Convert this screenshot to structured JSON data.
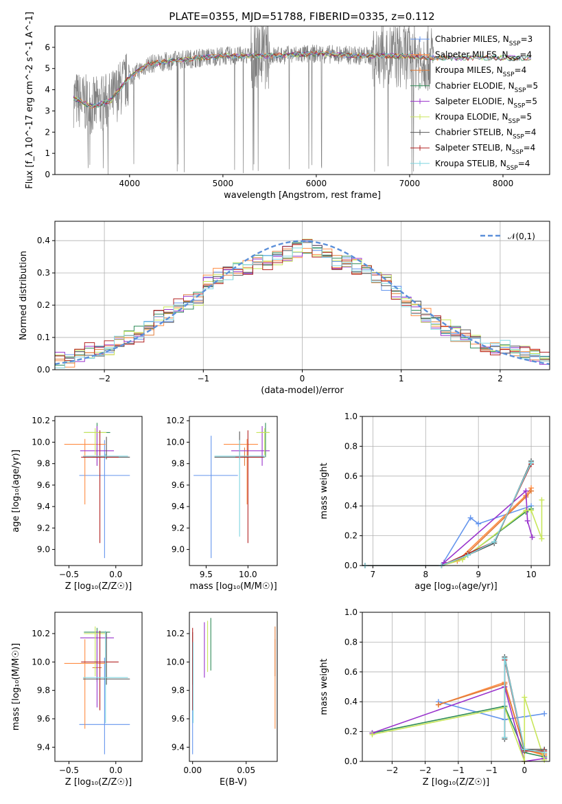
{
  "title": "PLATE=0355, MJD=51788, FIBERID=0335, z=0.112",
  "colors": {
    "chabrier_miles": "#6495ed",
    "salpeter_miles": "#ff8c42",
    "kroupa_miles": "#e07b39",
    "chabrier_elodie": "#2e8b57",
    "salpeter_elodie": "#9932cc",
    "kroupa_elodie": "#c8e65a",
    "chabrier_stelib": "#555555",
    "salpeter_stelib": "#b22222",
    "kroupa_stelib": "#7fd6e0",
    "data": "#808080",
    "gaussian": "#5b8fd9"
  },
  "chart_data": [
    {
      "type": "line",
      "title": "PLATE=0355, MJD=51788, FIBERID=0335, z=0.112",
      "xlabel": "wavelength [Angstrom, rest frame]",
      "ylabel": "Flux [f_λ 10^-17 erg cm^-2 s^-1 A^-1]",
      "xlim": [
        3200,
        8500
      ],
      "ylim": [
        0,
        7
      ],
      "xticks": [
        4000,
        5000,
        6000,
        7000,
        8000
      ],
      "yticks": [
        0,
        1,
        2,
        3,
        4,
        5,
        6
      ],
      "legend_position": "upper-right",
      "series": [
        {
          "name": "Chabrier MILES, N_SSP=3"
        },
        {
          "name": "Salpeter MILES, N_SSP=4"
        },
        {
          "name": "Kroupa MILES, N_SSP=4"
        },
        {
          "name": "Chabrier ELODIE, N_SSP=5"
        },
        {
          "name": "Salpeter ELODIE, N_SSP=5"
        },
        {
          "name": "Kroupa ELODIE, N_SSP=5"
        },
        {
          "name": "Chabrier STELIB, N_SSP=4"
        },
        {
          "name": "Salpeter STELIB, N_SSP=4"
        },
        {
          "name": "Kroupa STELIB, N_SSP=4"
        }
      ],
      "continuum": {
        "x": [
          3400,
          3600,
          3800,
          4000,
          4200,
          4500,
          5000,
          5500,
          6000,
          6500,
          7000,
          7200
        ],
        "y": [
          3.6,
          3.2,
          3.5,
          4.6,
          5.2,
          5.4,
          5.6,
          5.6,
          5.7,
          5.6,
          5.6,
          5.5
        ]
      }
    },
    {
      "type": "line",
      "xlabel": "(data-model)/error",
      "ylabel": "Normed distribution",
      "xlim": [
        -2.5,
        2.5
      ],
      "ylim": [
        0,
        0.46
      ],
      "xticks": [
        -2,
        -1,
        0,
        1,
        2
      ],
      "yticks": [
        0.0,
        0.1,
        0.2,
        0.3,
        0.4
      ],
      "grid": true,
      "legend_position": "upper-right",
      "legend_label": "𝒩(0,1)",
      "histogram_mean": {
        "x": [
          -2.45,
          -2.35,
          -2.25,
          -2.15,
          -2.05,
          -1.95,
          -1.85,
          -1.75,
          -1.65,
          -1.55,
          -1.45,
          -1.35,
          -1.25,
          -1.15,
          -1.05,
          -0.95,
          -0.85,
          -0.75,
          -0.65,
          -0.55,
          -0.45,
          -0.35,
          -0.25,
          -0.15,
          -0.05,
          0.05,
          0.15,
          0.25,
          0.35,
          0.45,
          0.55,
          0.65,
          0.75,
          0.85,
          0.95,
          1.05,
          1.15,
          1.25,
          1.35,
          1.45,
          1.55,
          1.65,
          1.75,
          1.85,
          1.95,
          2.05,
          2.15,
          2.25,
          2.35,
          2.45
        ],
        "y": [
          0.03,
          0.03,
          0.05,
          0.06,
          0.06,
          0.07,
          0.08,
          0.1,
          0.11,
          0.13,
          0.16,
          0.17,
          0.2,
          0.21,
          0.22,
          0.27,
          0.29,
          0.3,
          0.31,
          0.32,
          0.33,
          0.33,
          0.35,
          0.36,
          0.37,
          0.38,
          0.37,
          0.35,
          0.33,
          0.33,
          0.32,
          0.3,
          0.28,
          0.27,
          0.24,
          0.21,
          0.19,
          0.17,
          0.15,
          0.13,
          0.11,
          0.1,
          0.09,
          0.08,
          0.07,
          0.07,
          0.06,
          0.05,
          0.05,
          0.04
        ]
      }
    },
    {
      "type": "scatter",
      "xlabel": "Z [log₁₀(Z/Z☉)]",
      "ylabel": "age  [log₁₀(age/yr)]",
      "xlim": [
        -0.65,
        0.28
      ],
      "ylim": [
        8.85,
        10.24
      ],
      "xticks": [
        -0.5,
        0.0
      ],
      "yticks": [
        9.0,
        9.2,
        9.4,
        9.6,
        9.8,
        10.0,
        10.2
      ],
      "points": [
        {
          "model": "chabrier_miles",
          "x": -0.12,
          "y": 9.69,
          "xerr": 0.27,
          "ylo": 8.92,
          "yhi": 10.02
        },
        {
          "model": "salpeter_miles",
          "x": -0.33,
          "y": 9.98,
          "xerr": 0.22,
          "ylo": 9.42,
          "yhi": 10.03
        },
        {
          "model": "kroupa_miles",
          "x": -0.2,
          "y": 9.86,
          "xerr": 0.05,
          "ylo": 9.78,
          "yhi": 9.95
        },
        {
          "model": "chabrier_elodie",
          "x": -0.2,
          "y": 10.09,
          "xerr": 0.14,
          "ylo": 9.86,
          "yhi": 10.18
        },
        {
          "model": "salpeter_elodie",
          "x": -0.2,
          "y": 9.92,
          "xerr": 0.18,
          "ylo": 9.78,
          "yhi": 10.15
        },
        {
          "model": "kroupa_elodie",
          "x": -0.22,
          "y": 10.09,
          "xerr": 0.12,
          "ylo": 9.88,
          "yhi": 10.13
        },
        {
          "model": "chabrier_stelib",
          "x": -0.1,
          "y": 9.86,
          "xerr": 0.25,
          "ylo": 9.84,
          "yhi": 10.05
        },
        {
          "model": "salpeter_stelib",
          "x": -0.17,
          "y": 9.86,
          "xerr": 0.2,
          "ylo": 9.06,
          "yhi": 10.11
        },
        {
          "model": "kroupa_stelib",
          "x": -0.11,
          "y": 9.87,
          "xerr": 0.24,
          "ylo": 9.85,
          "yhi": 9.89
        }
      ]
    },
    {
      "type": "scatter",
      "xlabel": "mass [log₁₀(M/M☉)]",
      "xlim": [
        9.3,
        10.35
      ],
      "ylim": [
        8.85,
        10.24
      ],
      "xticks": [
        9.5,
        10.0
      ],
      "yticks": [
        9.0,
        9.2,
        9.4,
        9.6,
        9.8,
        10.0,
        10.2
      ],
      "points": [
        {
          "model": "chabrier_miles",
          "x": 9.56,
          "y": 9.69,
          "xlo": 9.35,
          "xhi": 9.88,
          "ylo": 8.92,
          "yhi": 10.06
        },
        {
          "model": "salpeter_miles",
          "x": 9.99,
          "y": 9.98,
          "xlo": 9.71,
          "xhi": 10.12,
          "ylo": 9.42,
          "yhi": 10.03
        },
        {
          "model": "kroupa_miles",
          "x": 9.96,
          "y": 9.86,
          "xlo": 9.93,
          "xhi": 10.0,
          "ylo": 9.78,
          "yhi": 9.95
        },
        {
          "model": "chabrier_elodie",
          "x": 10.21,
          "y": 10.09,
          "xlo": 10.14,
          "xhi": 10.25,
          "ylo": 9.86,
          "yhi": 10.18
        },
        {
          "model": "salpeter_elodie",
          "x": 10.17,
          "y": 9.92,
          "xlo": 9.8,
          "xhi": 10.26,
          "ylo": 9.78,
          "yhi": 10.15
        },
        {
          "model": "kroupa_elodie",
          "x": 10.2,
          "y": 10.09,
          "xlo": 10.1,
          "xhi": 10.26,
          "ylo": 9.88,
          "yhi": 10.13
        },
        {
          "model": "chabrier_stelib",
          "x": 9.9,
          "y": 9.86,
          "xlo": 9.6,
          "xhi": 10.2,
          "ylo": 9.84,
          "yhi": 10.1
        },
        {
          "model": "salpeter_stelib",
          "x": 10.0,
          "y": 9.86,
          "xlo": 9.85,
          "xhi": 10.18,
          "ylo": 9.06,
          "yhi": 10.11
        },
        {
          "model": "kroupa_stelib",
          "x": 9.9,
          "y": 9.87,
          "xlo": 9.6,
          "xhi": 10.2,
          "ylo": 9.12,
          "yhi": 10.02
        }
      ]
    },
    {
      "type": "line",
      "xlabel": "age  [log₁₀(age/yr)]",
      "ylabel": "mass weight",
      "xlim": [
        6.8,
        10.35
      ],
      "ylim": [
        0,
        1
      ],
      "xticks": [
        7,
        8,
        9,
        10
      ],
      "yticks": [
        0.0,
        0.2,
        0.4,
        0.6,
        0.8,
        1.0
      ],
      "grid": true,
      "series": [
        {
          "model": "chabrier_miles",
          "x": [
            6.85,
            8.3,
            8.85,
            9.0,
            10.0
          ],
          "y": [
            0.0,
            0.0,
            0.32,
            0.28,
            0.4
          ]
        },
        {
          "model": "salpeter_miles",
          "x": [
            6.85,
            8.3,
            8.6,
            9.9,
            10.0
          ],
          "y": [
            0.0,
            0.0,
            0.03,
            0.47,
            0.52
          ]
        },
        {
          "model": "kroupa_miles",
          "x": [
            6.85,
            8.3,
            8.7,
            9.9,
            10.0
          ],
          "y": [
            0.0,
            0.0,
            0.05,
            0.46,
            0.5
          ]
        },
        {
          "model": "chabrier_elodie",
          "x": [
            6.85,
            8.3,
            8.8,
            9.9,
            10.0
          ],
          "y": [
            0.0,
            0.0,
            0.07,
            0.36,
            0.38
          ]
        },
        {
          "model": "salpeter_elodie",
          "x": [
            6.85,
            8.3,
            8.35,
            9.9,
            9.93,
            10.02
          ],
          "y": [
            0.0,
            0.0,
            0.02,
            0.5,
            0.3,
            0.19
          ]
        },
        {
          "model": "kroupa_elodie",
          "x": [
            6.85,
            8.3,
            8.7,
            9.9,
            10.0,
            10.2,
            10.2
          ],
          "y": [
            0.0,
            0.0,
            0.04,
            0.37,
            0.37,
            0.18,
            0.44
          ]
        },
        {
          "model": "chabrier_stelib",
          "x": [
            6.85,
            8.3,
            8.8,
            9.3,
            10.0
          ],
          "y": [
            0.0,
            0.0,
            0.07,
            0.15,
            0.7
          ]
        },
        {
          "model": "salpeter_stelib",
          "x": [
            6.85,
            8.3,
            8.8,
            9.3,
            10.0
          ],
          "y": [
            0.0,
            0.0,
            0.08,
            0.16,
            0.68
          ]
        },
        {
          "model": "kroupa_stelib",
          "x": [
            6.85,
            8.3,
            8.8,
            9.3,
            10.0
          ],
          "y": [
            0.0,
            0.0,
            0.07,
            0.16,
            0.69
          ]
        }
      ]
    },
    {
      "type": "scatter",
      "xlabel": "Z [log₁₀(Z/Z☉)]",
      "ylabel": "mass [log₁₀(M/M☉)]",
      "xlim": [
        -0.65,
        0.28
      ],
      "ylim": [
        9.3,
        10.35
      ],
      "xticks": [
        -0.5,
        0.0
      ],
      "yticks": [
        9.4,
        9.6,
        9.8,
        10.0,
        10.2
      ],
      "points": [
        {
          "model": "chabrier_miles",
          "x": -0.12,
          "y": 9.56,
          "xerr": 0.27,
          "ylo": 9.35,
          "yhi": 10.03
        },
        {
          "model": "salpeter_miles",
          "x": -0.33,
          "y": 9.99,
          "xerr": 0.22,
          "ylo": 9.53,
          "yhi": 10.16
        },
        {
          "model": "kroupa_miles",
          "x": -0.2,
          "y": 9.96,
          "xerr": 0.05,
          "ylo": 9.9,
          "yhi": 10.02
        },
        {
          "model": "chabrier_elodie",
          "x": -0.2,
          "y": 10.21,
          "xerr": 0.14,
          "ylo": 9.86,
          "yhi": 10.24
        },
        {
          "model": "salpeter_elodie",
          "x": -0.2,
          "y": 10.17,
          "xerr": 0.18,
          "ylo": 9.68,
          "yhi": 10.22
        },
        {
          "model": "kroupa_elodie",
          "x": -0.22,
          "y": 10.2,
          "xerr": 0.12,
          "ylo": 9.9,
          "yhi": 10.25
        },
        {
          "model": "chabrier_stelib",
          "x": -0.1,
          "y": 9.88,
          "xerr": 0.25,
          "ylo": 9.84,
          "yhi": 10.21
        },
        {
          "model": "salpeter_stelib",
          "x": -0.17,
          "y": 10.0,
          "xerr": 0.2,
          "ylo": 9.66,
          "yhi": 10.22
        },
        {
          "model": "kroupa_stelib",
          "x": -0.11,
          "y": 9.89,
          "xerr": 0.24,
          "ylo": 9.57,
          "yhi": 10.22
        }
      ]
    },
    {
      "type": "scatter",
      "xlabel": "E(B-V)",
      "xlim": [
        -0.003,
        0.079
      ],
      "ylim": [
        9.3,
        10.35
      ],
      "xticks": [
        0.0,
        0.05
      ],
      "yticks": [
        9.4,
        9.6,
        9.8,
        10.0,
        10.2
      ],
      "points": [
        {
          "model": "chabrier_miles",
          "x": 0.0,
          "y": 9.56,
          "ylo": 9.35,
          "yhi": 10.03
        },
        {
          "model": "salpeter_miles",
          "x": 0.077,
          "y": 9.99,
          "ylo": 9.53,
          "yhi": 10.16
        },
        {
          "model": "kroupa_miles",
          "x": 0.077,
          "y": 9.96,
          "ylo": 9.9,
          "yhi": 10.25
        },
        {
          "model": "chabrier_elodie",
          "x": 0.017,
          "y": 10.21,
          "ylo": 9.94,
          "yhi": 10.31
        },
        {
          "model": "salpeter_elodie",
          "x": 0.011,
          "y": 10.17,
          "ylo": 9.89,
          "yhi": 10.28
        },
        {
          "model": "kroupa_elodie",
          "x": 0.014,
          "y": 10.2,
          "ylo": 9.93,
          "yhi": 10.29
        },
        {
          "model": "chabrier_stelib",
          "x": 0.0,
          "y": 9.88,
          "ylo": 9.84,
          "yhi": 10.21
        },
        {
          "model": "salpeter_stelib",
          "x": 0.0,
          "y": 10.0,
          "ylo": 9.66,
          "yhi": 10.24
        },
        {
          "model": "kroupa_stelib",
          "x": 0.0005,
          "y": 9.89,
          "ylo": 9.57,
          "yhi": 10.14
        }
      ]
    },
    {
      "type": "line",
      "xlabel": "Z [log₁₀(Z/Z☉)]",
      "ylabel": "mass weight",
      "xlim": [
        -2.45,
        0.38
      ],
      "ylim": [
        0,
        1
      ],
      "xticks": [
        -2.0,
        -1.5,
        -1.0,
        -0.5,
        0.0
      ],
      "yticks": [
        0.0,
        0.2,
        0.4,
        0.6,
        0.8,
        1.0
      ],
      "grid": true,
      "series": [
        {
          "model": "chabrier_miles",
          "x": [
            -1.3,
            -0.3,
            0.0,
            0.3
          ],
          "y": [
            0.4,
            0.28,
            0.3,
            0.32
          ]
        },
        {
          "model": "salpeter_miles",
          "x": [
            -1.3,
            -0.3,
            0.0,
            0.3
          ],
          "y": [
            0.38,
            0.53,
            0.08,
            0.04
          ]
        },
        {
          "model": "kroupa_miles",
          "x": [
            -1.3,
            -0.3,
            0.0,
            0.3
          ],
          "y": [
            0.38,
            0.52,
            0.08,
            0.05
          ]
        },
        {
          "model": "chabrier_elodie",
          "x": [
            -2.3,
            -0.3,
            0.0,
            0.3
          ],
          "y": [
            0.19,
            0.37,
            0.06,
            0.03
          ]
        },
        {
          "model": "salpeter_elodie",
          "x": [
            -2.3,
            -0.3,
            0.0,
            0.3
          ],
          "y": [
            0.19,
            0.5,
            0.0,
            0.02
          ]
        },
        {
          "model": "kroupa_elodie",
          "x": [
            -2.3,
            -0.3,
            0.0,
            0.0,
            0.3
          ],
          "y": [
            0.18,
            0.36,
            0.0,
            0.43,
            0.01
          ]
        },
        {
          "model": "chabrier_stelib",
          "x": [
            -0.3,
            -0.3,
            0.0,
            0.3
          ],
          "y": [
            0.15,
            0.7,
            0.08,
            0.08
          ]
        },
        {
          "model": "salpeter_stelib",
          "x": [
            -0.3,
            -0.3,
            0.0,
            0.3
          ],
          "y": [
            0.16,
            0.68,
            0.07,
            0.07
          ]
        },
        {
          "model": "kroupa_stelib",
          "x": [
            -0.3,
            -0.3,
            0.0,
            0.3
          ],
          "y": [
            0.16,
            0.69,
            0.08,
            0.06
          ]
        }
      ]
    }
  ]
}
